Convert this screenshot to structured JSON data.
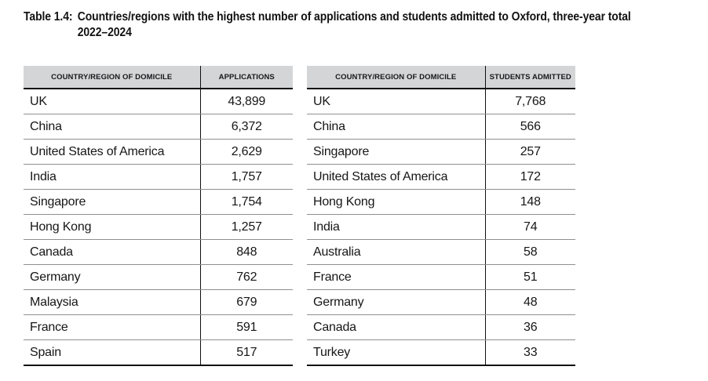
{
  "title": {
    "prefix": "Table 1.4:",
    "line1": "Countries/regions with the highest number of applications and students admitted to Oxford, three-year total",
    "line2": "2022–2024"
  },
  "tables": [
    {
      "name": "applications",
      "columns": [
        "COUNTRY/REGION OF DOMICILE",
        "APPLICATIONS"
      ],
      "rows": [
        {
          "country": "UK",
          "value": "43,899"
        },
        {
          "country": "China",
          "value": "6,372"
        },
        {
          "country": "United States of America",
          "value": "2,629"
        },
        {
          "country": "India",
          "value": "1,757"
        },
        {
          "country": "Singapore",
          "value": "1,754"
        },
        {
          "country": "Hong Kong",
          "value": "1,257"
        },
        {
          "country": "Canada",
          "value": "848"
        },
        {
          "country": "Germany",
          "value": "762"
        },
        {
          "country": "Malaysia",
          "value": "679"
        },
        {
          "country": "France",
          "value": "591"
        },
        {
          "country": "Spain",
          "value": "517"
        }
      ]
    },
    {
      "name": "students_admitted",
      "columns": [
        "COUNTRY/REGION OF DOMICILE",
        "STUDENTS ADMITTED"
      ],
      "rows": [
        {
          "country": "UK",
          "value": "7,768"
        },
        {
          "country": "China",
          "value": "566"
        },
        {
          "country": "Singapore",
          "value": "257"
        },
        {
          "country": "United States of America",
          "value": "172"
        },
        {
          "country": "Hong Kong",
          "value": "148"
        },
        {
          "country": "India",
          "value": "74"
        },
        {
          "country": "Australia",
          "value": "58"
        },
        {
          "country": "France",
          "value": "51"
        },
        {
          "country": "Germany",
          "value": "48"
        },
        {
          "country": "Canada",
          "value": "36"
        },
        {
          "country": "Turkey",
          "value": "33"
        }
      ]
    }
  ],
  "colors": {
    "header_bg": "#d4d5d7",
    "header_text": "#17181c",
    "body_text": "#161616",
    "row_divider": "#8f8f8f",
    "strong_line": "#0f0f0f"
  }
}
